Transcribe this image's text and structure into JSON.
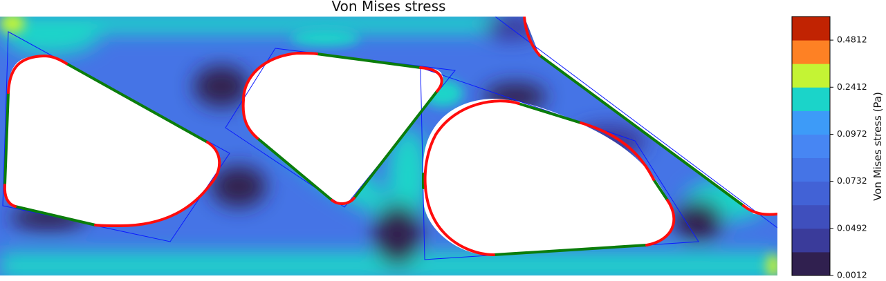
{
  "chart_data": {
    "type": "heatmap",
    "title": "Von Mises stress",
    "colorbar": {
      "label": "Von Mises stress (Pa)",
      "tick_labels": [
        "0.0012",
        "0.0492",
        "0.0732",
        "0.0972",
        "0.2412",
        "0.4812"
      ],
      "levels": [
        {
          "color": "#30204f"
        },
        {
          "color": "#3a3b9a"
        },
        {
          "color": "#3f4fbd"
        },
        {
          "color": "#4262d6"
        },
        {
          "color": "#4574e6"
        },
        {
          "color": "#4786f3"
        },
        {
          "color": "#3d9bf8"
        },
        {
          "color": "#1bd4c9"
        },
        {
          "color": "#c4f434"
        },
        {
          "color": "#fe8124"
        },
        {
          "color": "#c12302"
        }
      ]
    },
    "field_colors": {
      "background": "#4574e6",
      "high": "#1bd4c9",
      "low": "#30204f",
      "mid_low": "#3a3b9a",
      "mid": "#3f4fbd",
      "peak": "#c4f434"
    },
    "outline_colors": {
      "arc": "#ff0d0d",
      "edge": "#0b7d0b",
      "polygon": "#0a1aff"
    }
  }
}
